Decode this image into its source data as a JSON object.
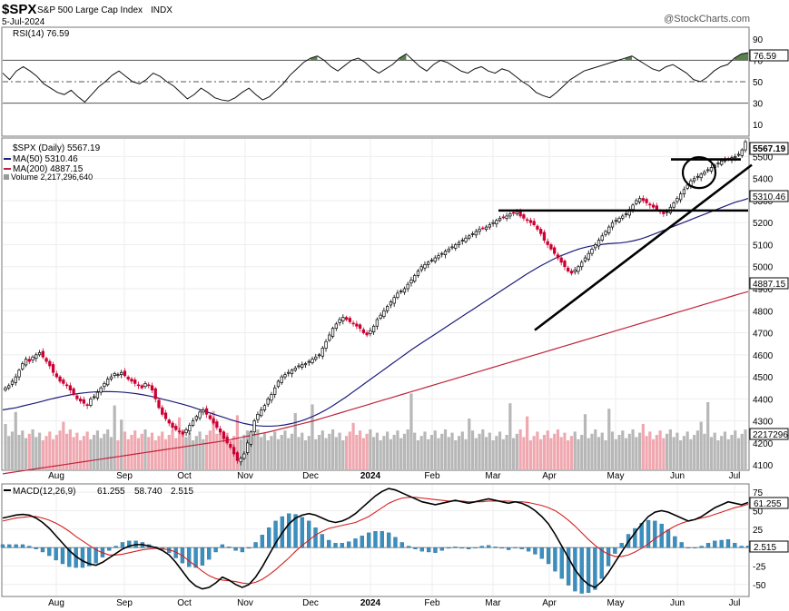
{
  "header": {
    "symbol": "$SPX",
    "name": "S&P 500 Large Cap Index",
    "exchange": "INDX",
    "date": "5-Jul-2024",
    "watermark": "@StockCharts.com"
  },
  "colors": {
    "up_candle": "#000000",
    "down_candle": "#cc0033",
    "ma50": "#1c1c7a",
    "ma200": "#c0243c",
    "volume_up": "#b7b7b7",
    "volume_down": "#f0a8b0",
    "rsi_fill": "#5b7f4f",
    "macd_hist": "#3b8fbf",
    "macd_signal": "#d62020",
    "trendline": "#000000"
  },
  "chart_data": [
    {
      "type": "line",
      "panel": "rsi",
      "legend": "RSI(14) 76.59",
      "last_value": "76.59",
      "y_ticks": [
        "90",
        "70",
        "50",
        "30",
        "10"
      ],
      "ylim": [
        0,
        100
      ],
      "levels": [
        70,
        50,
        30
      ],
      "series": [
        {
          "name": "RSI(14)",
          "values": [
            58,
            52,
            60,
            64,
            60,
            55,
            48,
            44,
            40,
            38,
            42,
            36,
            31,
            38,
            45,
            50,
            56,
            60,
            55,
            50,
            48,
            52,
            58,
            55,
            50,
            46,
            40,
            34,
            38,
            44,
            40,
            35,
            33,
            32,
            35,
            40,
            44,
            38,
            33,
            36,
            42,
            48,
            56,
            62,
            68,
            72,
            74,
            70,
            64,
            60,
            65,
            70,
            72,
            68,
            62,
            58,
            62,
            66,
            72,
            76,
            70,
            64,
            60,
            66,
            70,
            68,
            64,
            60,
            58,
            62,
            64,
            60,
            58,
            62,
            60,
            55,
            50,
            46,
            40,
            37,
            35,
            40,
            46,
            52,
            56,
            60,
            62,
            64,
            66,
            68,
            70,
            72,
            74,
            70,
            66,
            62,
            60,
            64,
            66,
            62,
            58,
            52,
            50,
            54,
            60,
            64,
            66,
            72,
            76,
            77
          ]
        }
      ]
    },
    {
      "type": "candlestick",
      "panel": "price",
      "legend": [
        "$SPX (Daily) 5567.19",
        "MA(50) 5310.46",
        "MA(200) 4887.15",
        "Volume 2,217,296,640"
      ],
      "last_price": "5567.19",
      "ma50_last": "5310.46",
      "ma200_last": "4887.15",
      "volume_last": "2217296",
      "y_ticks": [
        "5500",
        "5400",
        "5300",
        "5200",
        "5100",
        "5000",
        "4900",
        "4800",
        "4700",
        "4600",
        "4500",
        "4400",
        "4300",
        "4200",
        "4100"
      ],
      "ylim": [
        4080,
        5580
      ],
      "x_ticks": [
        "Aug",
        "Sep",
        "Oct",
        "Nov",
        "Dec",
        "2024",
        "Feb",
        "Mar",
        "Apr",
        "May",
        "Jun",
        "Jul"
      ],
      "x_tick_bold": [
        false,
        false,
        false,
        false,
        false,
        true,
        false,
        false,
        false,
        false,
        false,
        false
      ],
      "closes": [
        4450,
        4460,
        4480,
        4500,
        4530,
        4560,
        4580,
        4570,
        4590,
        4600,
        4610,
        4590,
        4570,
        4550,
        4520,
        4500,
        4480,
        4470,
        4460,
        4440,
        4420,
        4400,
        4390,
        4380,
        4370,
        4400,
        4410,
        4430,
        4450,
        4470,
        4490,
        4500,
        4515,
        4510,
        4520,
        4505,
        4490,
        4480,
        4470,
        4460,
        4450,
        4470,
        4460,
        4440,
        4400,
        4360,
        4330,
        4310,
        4290,
        4270,
        4260,
        4250,
        4240,
        4260,
        4280,
        4300,
        4320,
        4340,
        4350,
        4330,
        4310,
        4290,
        4270,
        4250,
        4220,
        4200,
        4180,
        4150,
        4120,
        4130,
        4150,
        4200,
        4250,
        4300,
        4330,
        4350,
        4370,
        4400,
        4420,
        4450,
        4480,
        4500,
        4510,
        4520,
        4530,
        4540,
        4550,
        4555,
        4560,
        4570,
        4580,
        4590,
        4600,
        4630,
        4660,
        4690,
        4720,
        4740,
        4760,
        4770,
        4760,
        4750,
        4740,
        4730,
        4720,
        4700,
        4690,
        4710,
        4730,
        4760,
        4780,
        4800,
        4820,
        4840,
        4860,
        4880,
        4890,
        4900,
        4920,
        4940,
        4960,
        4980,
        5000,
        5010,
        5020,
        5030,
        5040,
        5050,
        5060,
        5070,
        5080,
        5090,
        5100,
        5110,
        5120,
        5130,
        5140,
        5150,
        5160,
        5170,
        5175,
        5180,
        5190,
        5200,
        5210,
        5220,
        5225,
        5230,
        5240,
        5245,
        5250,
        5230,
        5220,
        5210,
        5200,
        5190,
        5170,
        5150,
        5120,
        5100,
        5080,
        5060,
        5040,
        5020,
        5000,
        4980,
        4970,
        4985,
        5000,
        5020,
        5040,
        5060,
        5080,
        5100,
        5120,
        5140,
        5160,
        5180,
        5200,
        5210,
        5220,
        5230,
        5240,
        5260,
        5280,
        5300,
        5310,
        5300,
        5290,
        5280,
        5270,
        5260,
        5250,
        5240,
        5250,
        5270,
        5290,
        5310,
        5330,
        5350,
        5370,
        5390,
        5400,
        5410,
        5420,
        5430,
        5440,
        5450,
        5460,
        5470,
        5480,
        5485,
        5490,
        5495,
        5500,
        5510,
        5530,
        5567
      ],
      "ma50": [
        4350,
        4355,
        4360,
        4368,
        4375,
        4382,
        4390,
        4398,
        4405,
        4412,
        4418,
        4423,
        4427,
        4430,
        4432,
        4433,
        4433,
        4432,
        4430,
        4427,
        4423,
        4418,
        4412,
        4405,
        4397,
        4390,
        4382,
        4374,
        4365,
        4355,
        4345,
        4335,
        4325,
        4315,
        4305,
        4296,
        4288,
        4282,
        4278,
        4276,
        4276,
        4278,
        4282,
        4288,
        4296,
        4306,
        4318,
        4332,
        4348,
        4366,
        4386,
        4406,
        4428,
        4450,
        4472,
        4494,
        4516,
        4538,
        4560,
        4582,
        4604,
        4626,
        4646,
        4666,
        4686,
        4706,
        4726,
        4746,
        4766,
        4786,
        4806,
        4826,
        4846,
        4866,
        4886,
        4906,
        4926,
        4946,
        4966,
        4984,
        5002,
        5018,
        5034,
        5048,
        5060,
        5072,
        5082,
        5090,
        5096,
        5100,
        5104,
        5106,
        5108,
        5112,
        5118,
        5126,
        5136,
        5148,
        5160,
        5172,
        5184,
        5196,
        5208,
        5220,
        5232,
        5244,
        5256,
        5268,
        5280,
        5292,
        5300,
        5310
      ],
      "ma200": [
        4060,
        4066,
        4072,
        4078,
        4084,
        4090,
        4096,
        4102,
        4108,
        4114,
        4120,
        4126,
        4132,
        4138,
        4144,
        4150,
        4156,
        4162,
        4168,
        4174,
        4180,
        4186,
        4192,
        4198,
        4204,
        4210,
        4218,
        4226,
        4234,
        4242,
        4250,
        4260,
        4270,
        4280,
        4290,
        4300,
        4312,
        4324,
        4336,
        4348,
        4360,
        4372,
        4384,
        4396,
        4408,
        4420,
        4432,
        4444,
        4456,
        4468,
        4480,
        4492,
        4504,
        4516,
        4528,
        4540,
        4552,
        4564,
        4576,
        4588,
        4600,
        4612,
        4624,
        4636,
        4648,
        4660,
        4672,
        4684,
        4696,
        4708,
        4720,
        4732,
        4744,
        4756,
        4768,
        4780,
        4792,
        4804,
        4816,
        4828,
        4840,
        4852,
        4864,
        4876,
        4887
      ],
      "annotations": [
        "support/resistance line 5250",
        "resistance line 5480",
        "rising trendline",
        "breakout circle"
      ]
    },
    {
      "type": "line",
      "panel": "macd",
      "legend": "MACD(12,26,9) 61.255, 58.740, 2.515",
      "macd_label": "MACD(12,26,9)",
      "macd_value": "61.255",
      "signal_value": "58.740",
      "hist_value": "2.515",
      "macd_last": "61.255",
      "hist_last": "2.515",
      "y_ticks": [
        "75",
        "50",
        "25",
        "0",
        "-25",
        "-50"
      ],
      "ylim": [
        -65,
        85
      ],
      "x_ticks": [
        "Aug",
        "Sep",
        "Oct",
        "Nov",
        "Dec",
        "2024",
        "Feb",
        "Mar",
        "Apr",
        "May",
        "Jun",
        "Jul"
      ],
      "x_tick_bold": [
        false,
        false,
        false,
        false,
        false,
        true,
        false,
        false,
        false,
        false,
        false,
        false
      ],
      "series": [
        {
          "name": "MACD",
          "values": [
            40,
            42,
            44,
            45,
            44,
            40,
            34,
            26,
            16,
            6,
            -4,
            -12,
            -18,
            -22,
            -24,
            -20,
            -14,
            -8,
            -2,
            2,
            4,
            4,
            2,
            0,
            -4,
            -10,
            -20,
            -32,
            -44,
            -52,
            -56,
            -54,
            -48,
            -40,
            -44,
            -50,
            -54,
            -50,
            -40,
            -26,
            -10,
            6,
            20,
            32,
            40,
            44,
            46,
            44,
            40,
            36,
            34,
            36,
            40,
            46,
            54,
            62,
            70,
            76,
            80,
            78,
            74,
            70,
            66,
            62,
            60,
            58,
            60,
            62,
            64,
            62,
            60,
            62,
            64,
            66,
            64,
            62,
            60,
            62,
            60,
            56,
            50,
            42,
            32,
            18,
            2,
            -14,
            -30,
            -42,
            -50,
            -54,
            -46,
            -34,
            -20,
            -6,
            8,
            20,
            32,
            42,
            48,
            50,
            48,
            44,
            40,
            36,
            38,
            42,
            48,
            54,
            58,
            62,
            60,
            58,
            61
          ]
        },
        {
          "name": "Signal",
          "values": [
            36,
            38,
            40,
            41,
            42,
            42,
            40,
            37,
            33,
            28,
            22,
            15,
            9,
            3,
            -3,
            -7,
            -10,
            -10,
            -9,
            -7,
            -5,
            -3,
            -2,
            -1,
            -2,
            -3,
            -6,
            -11,
            -18,
            -25,
            -32,
            -38,
            -42,
            -44,
            -45,
            -46,
            -48,
            -49,
            -47,
            -43,
            -37,
            -30,
            -22,
            -14,
            -5,
            3,
            10,
            17,
            22,
            26,
            28,
            30,
            32,
            34,
            38,
            42,
            48,
            54,
            60,
            64,
            67,
            68,
            68,
            67,
            66,
            65,
            64,
            63,
            63,
            63,
            62,
            62,
            62,
            63,
            63,
            63,
            63,
            62,
            62,
            61,
            59,
            57,
            54,
            50,
            44,
            37,
            29,
            20,
            11,
            3,
            -4,
            -9,
            -12,
            -12,
            -10,
            -6,
            -1,
            5,
            12,
            18,
            24,
            29,
            33,
            36,
            38,
            40,
            42,
            45,
            48,
            51,
            54,
            56,
            58.74
          ]
        }
      ]
    }
  ]
}
